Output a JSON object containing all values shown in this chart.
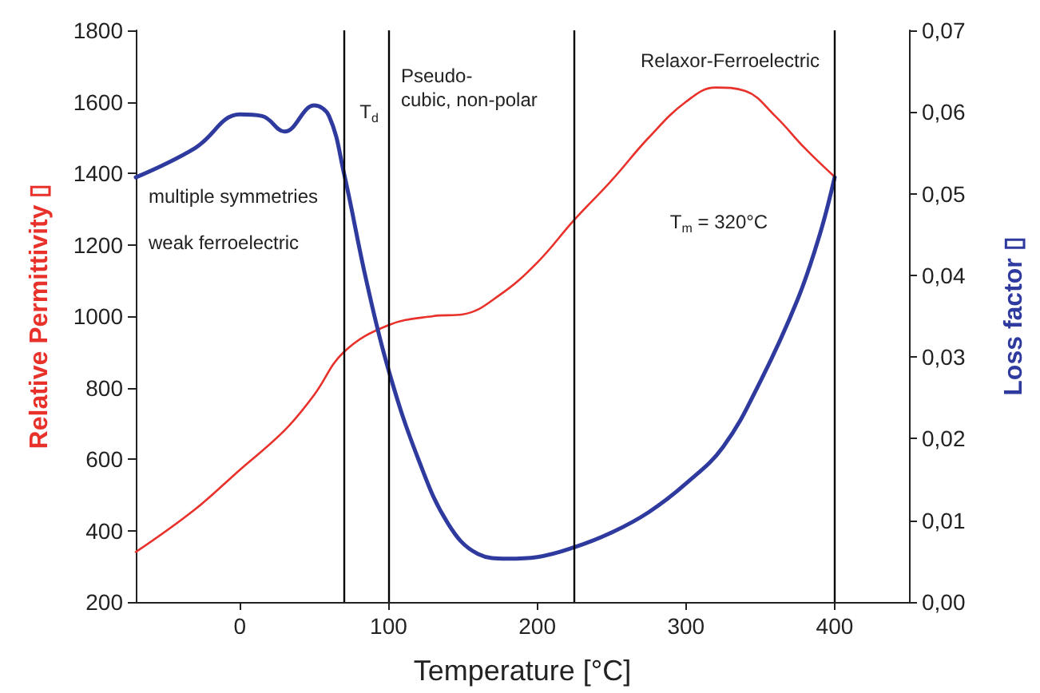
{
  "chart_data": {
    "type": "line",
    "xlabel": "Temperature [°C]",
    "ylabel": "Relative Permittivity ▯",
    "y2label": "Loss factor ▯",
    "xlim": [
      -70,
      450
    ],
    "xticks": [
      0,
      100,
      200,
      300,
      400
    ],
    "ylim": [
      200,
      1800
    ],
    "yticks": [
      200,
      400,
      600,
      800,
      1000,
      1200,
      1400,
      1600,
      1800
    ],
    "y2lim": [
      0,
      0.07
    ],
    "y2ticks": [
      {
        "value": 0,
        "label": "0,00"
      },
      {
        "value": 0.01,
        "label": "0,01"
      },
      {
        "value": 0.02,
        "label": "0,02"
      },
      {
        "value": 0.03,
        "label": "0,03"
      },
      {
        "value": 0.04,
        "label": "0,04"
      },
      {
        "value": 0.05,
        "label": "0,05"
      },
      {
        "value": 0.06,
        "label": "0,06"
      },
      {
        "value": 0.07,
        "label": "0,07"
      }
    ],
    "grid": false,
    "marker": "none",
    "line_style": "solid",
    "series": [
      {
        "color": "#e8312a",
        "x": [
          -70,
          -30,
          0,
          30,
          50,
          70,
          100,
          130,
          150,
          175,
          200,
          225,
          250,
          275,
          300,
          320,
          340,
          360,
          380,
          400
        ],
        "values": [
          340,
          460,
          570,
          680,
          780,
          900,
          975,
          1000,
          1005,
          1060,
          1150,
          1270,
          1380,
          1500,
          1600,
          1640,
          1630,
          1560,
          1470,
          1390
        ]
      },
      {
        "color": "#2f3a9e",
        "axis": "y2",
        "x": [
          -70,
          -30,
          0,
          15,
          30,
          50,
          60,
          70,
          85,
          100,
          120,
          140,
          160,
          180,
          200,
          225,
          250,
          275,
          300,
          325,
          350,
          375,
          390,
          400
        ],
        "values": [
          0.052,
          0.0556,
          0.0597,
          0.0595,
          0.0576,
          0.0608,
          0.0595,
          0.0525,
          0.0394,
          0.0284,
          0.0175,
          0.0096,
          0.0059,
          0.0053,
          0.0055,
          0.0067,
          0.0085,
          0.011,
          0.0145,
          0.019,
          0.027,
          0.037,
          0.045,
          0.052
        ]
      }
    ],
    "ref_lines": [
      {
        "axis": "x",
        "value": 70,
        "color": "#000000"
      },
      {
        "axis": "x",
        "value": 100,
        "color": "#000000"
      },
      {
        "axis": "x",
        "value": 225,
        "color": "#000000"
      },
      {
        "axis": "x",
        "value": 400,
        "color": "#000000"
      }
    ],
    "annotations": [
      "multiple symmetries",
      "weak ferroelectric",
      "T$_{d}$",
      "Pseudo-\ncubic, non-polar",
      "Relaxor-Ferroelectric",
      "T$_{m}$ = 320°C"
    ]
  }
}
